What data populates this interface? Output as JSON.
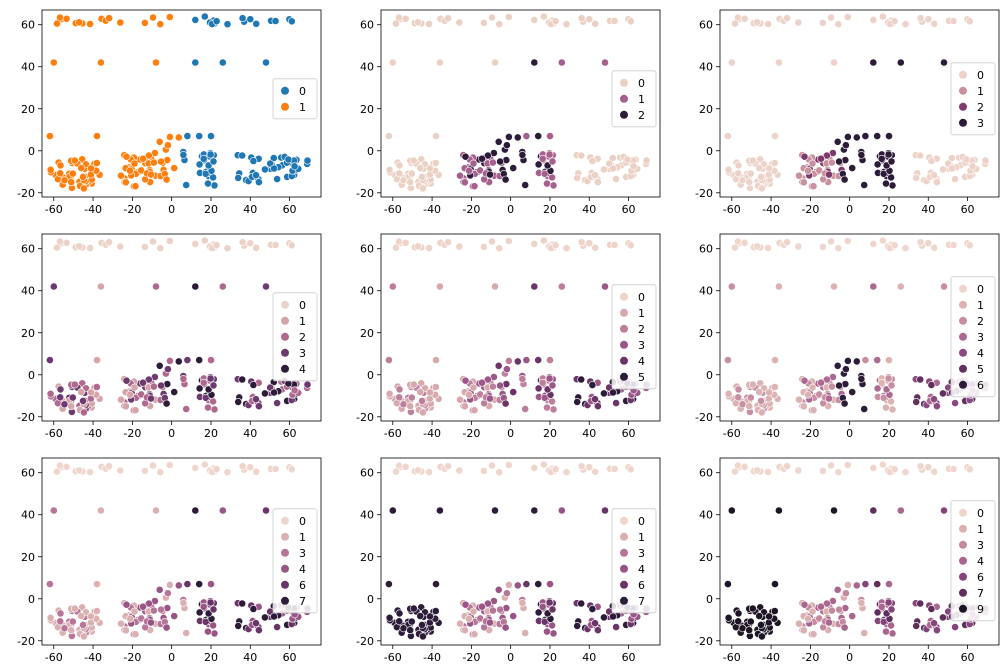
{
  "chart_data": [
    {
      "type": "scatter",
      "legend": [
        "0",
        "1"
      ],
      "colors": [
        "#1f77b4",
        "#ff7f0e"
      ],
      "cut": 5
    },
    {
      "type": "scatter",
      "legend": [
        "0",
        "1",
        "2"
      ],
      "colors": [
        "#ebd0c4",
        "#a6608d",
        "#2d1b3a"
      ],
      "clusterMap": [
        "L0",
        "M1",
        "D2",
        "M1",
        "L0",
        "L0"
      ]
    },
    {
      "type": "scatter",
      "legend": [
        "0",
        "1",
        "2",
        "3"
      ],
      "colors": [
        "#ecd2c8",
        "#c9919f",
        "#7d3b6d",
        "#2d1b3a"
      ],
      "clusterMap": [
        "L0",
        "M1",
        "D3",
        "D3",
        "L0",
        "L0"
      ]
    },
    {
      "type": "scatter",
      "legend": [
        "0",
        "1",
        "2",
        "3",
        "4"
      ],
      "colors": [
        "#ebd3c8",
        "#d6a5a9",
        "#b0698e",
        "#6c3a6f",
        "#2d1b3a"
      ],
      "clusterMap": [
        "M2",
        "M2",
        "M3",
        "M3",
        "M3",
        "L0"
      ]
    },
    {
      "type": "scatter",
      "legend": [
        "0",
        "1",
        "2",
        "3",
        "4",
        "5"
      ],
      "colors": [
        "#eed3c9",
        "#d7a9ad",
        "#bd7f9c",
        "#9b5788",
        "#6b3469",
        "#2d1b3a"
      ],
      "clusterMap": [
        "M1",
        "M2",
        "M3",
        "M3",
        "M4",
        "L0"
      ]
    },
    {
      "type": "scatter",
      "legend": [
        "0",
        "1",
        "2",
        "3",
        "4",
        "5",
        "6"
      ],
      "colors": [
        "#efd6cd",
        "#dcb2b2",
        "#c88fa3",
        "#aa6a92",
        "#8a4a80",
        "#60305e",
        "#2d1b3a"
      ],
      "clusterMap": [
        "M1",
        "M2",
        "D6",
        "M2",
        "M4",
        "L0"
      ]
    },
    {
      "type": "scatter",
      "legend": [
        "0",
        "1",
        "3",
        "4",
        "6",
        "7"
      ],
      "colors": [
        "#efd6cd",
        "#dbb0b1",
        "#b8759a",
        "#995586",
        "#6b3469",
        "#2d1b3a"
      ],
      "clusterMap": [
        "M1",
        "M2",
        "M2",
        "M4",
        "M4",
        "L0"
      ]
    },
    {
      "type": "scatter",
      "legend": [
        "0",
        "1",
        "3",
        "4",
        "6",
        "7"
      ],
      "colors": [
        "#efd6cd",
        "#dbb0b1",
        "#b8759a",
        "#995586",
        "#6b3469",
        "#2d1b3a"
      ],
      "clusterMap": [
        "D5",
        "M2",
        "M2",
        "M4",
        "M4",
        "L0"
      ]
    },
    {
      "type": "scatter",
      "legend": [
        "0",
        "1",
        "3",
        "4",
        "6",
        "7",
        "9"
      ],
      "colors": [
        "#efd6cd",
        "#dbb0b1",
        "#c38a9f",
        "#a9668f",
        "#85457a",
        "#5e2f5c",
        "#1d1426"
      ],
      "clusterMap": [
        "D6",
        "M2",
        "M2",
        "M4",
        "M4",
        "L0"
      ]
    }
  ],
  "axes": {
    "xlim": [
      -66,
      76
    ],
    "ylim": [
      -22,
      67
    ],
    "xticks": [
      "-60",
      "-40",
      "-20",
      "0",
      "20",
      "40",
      "60"
    ],
    "yticks": [
      "-20",
      "0",
      "20",
      "40",
      "60"
    ]
  }
}
